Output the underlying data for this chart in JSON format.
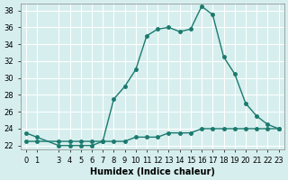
{
  "xlabel": "Humidex (Indice chaleur)",
  "ylabel": "",
  "background_color": "#d6eeee",
  "grid_color": "#ffffff",
  "line_color": "#1a7a6e",
  "marker_color": "#1a7a6e",
  "x_values": [
    0,
    1,
    3,
    4,
    5,
    6,
    7,
    8,
    9,
    10,
    11,
    12,
    13,
    14,
    15,
    16,
    17,
    18,
    19,
    20,
    21,
    22,
    23
  ],
  "y_main": [
    23.5,
    23,
    22,
    22,
    22,
    22,
    22.5,
    27.5,
    29,
    31,
    35,
    35.8,
    36,
    35.5,
    35.8,
    38.5,
    37.5,
    32.5,
    30.5,
    27,
    25.5,
    24.5,
    24
  ],
  "y_flat": [
    22.5,
    22.5,
    22.5,
    22.5,
    22.5,
    22.5,
    22.5,
    22.5,
    22.5,
    23,
    23,
    23,
    23.5,
    23.5,
    23.5,
    24,
    24,
    24,
    24,
    24,
    24,
    24,
    24
  ],
  "ylim": [
    22,
    38.5
  ],
  "yticks": [
    22,
    24,
    26,
    28,
    30,
    32,
    34,
    36,
    38
  ],
  "xlim": [
    -0.5,
    23.5
  ],
  "xticks": [
    0,
    1,
    3,
    4,
    5,
    6,
    7,
    8,
    9,
    10,
    11,
    12,
    13,
    14,
    15,
    16,
    17,
    18,
    19,
    20,
    21,
    22,
    23
  ],
  "xtick_labels": [
    "0",
    "1",
    "3",
    "4",
    "5",
    "6",
    "7",
    "8",
    "9",
    "10",
    "11",
    "12",
    "13",
    "14",
    "15",
    "16",
    "17",
    "18",
    "19",
    "20",
    "21",
    "22",
    "23"
  ],
  "title_fontsize": 8,
  "axis_fontsize": 7,
  "tick_fontsize": 6
}
